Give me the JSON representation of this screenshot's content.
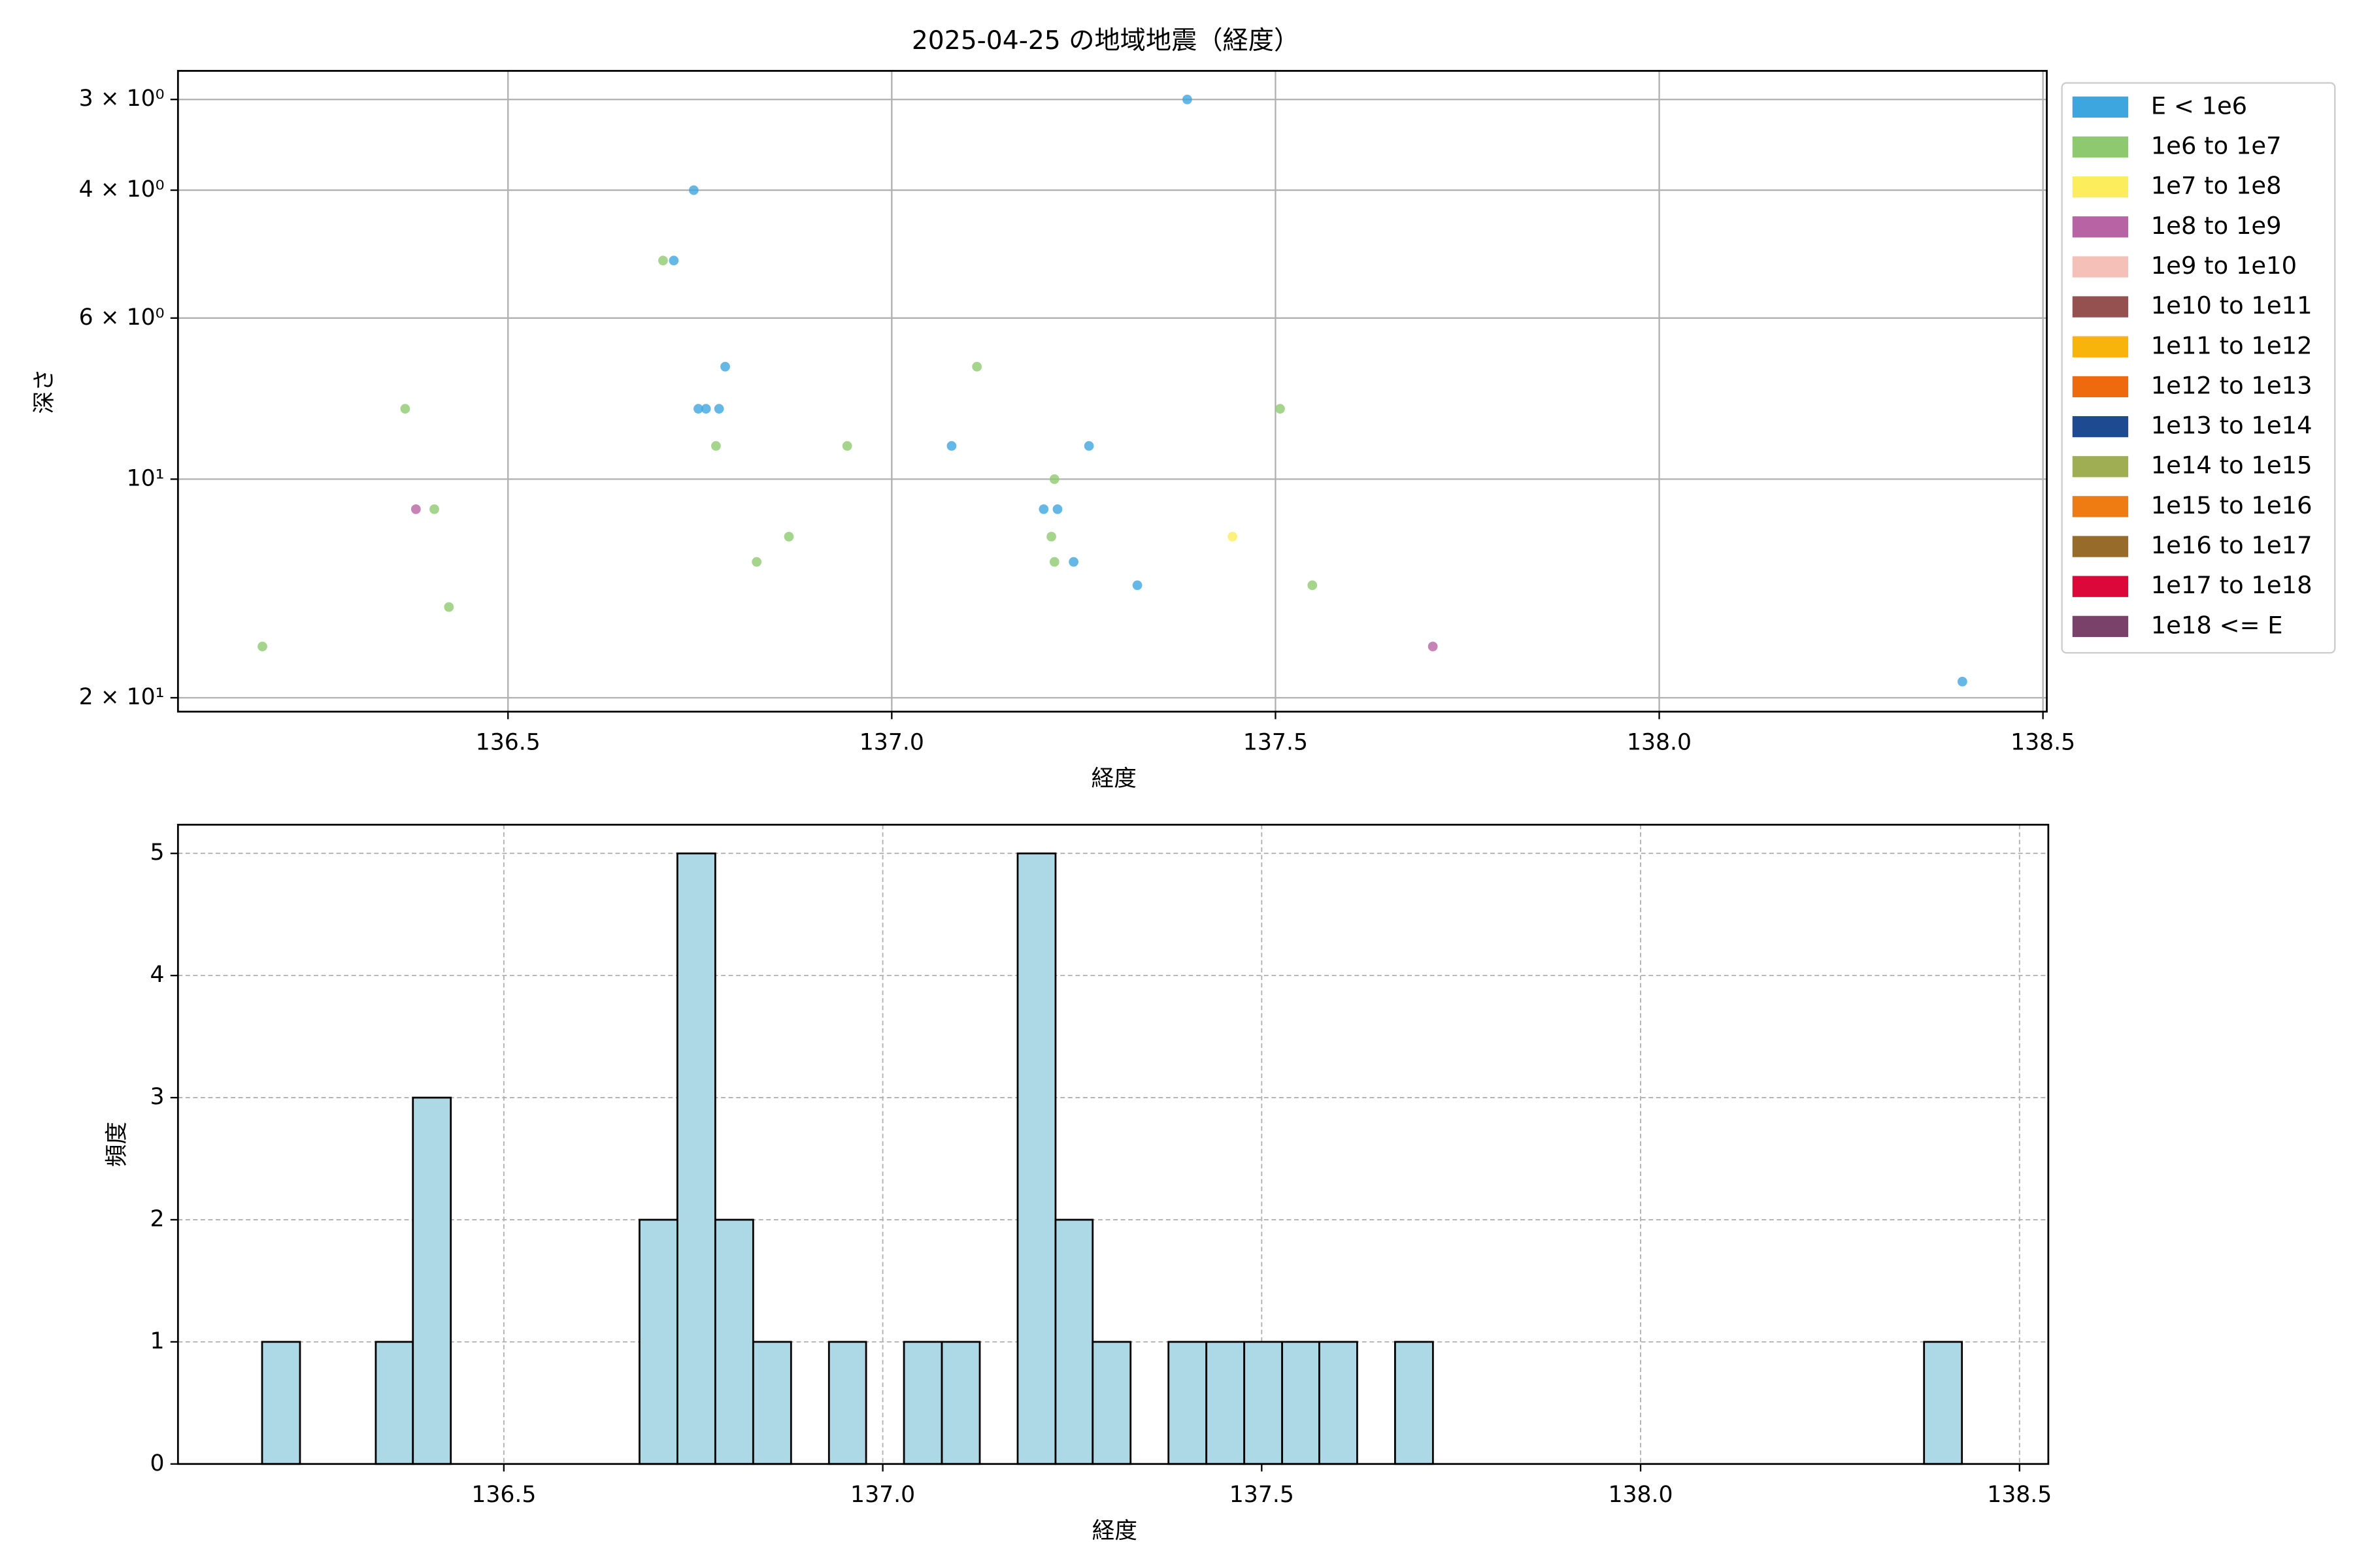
{
  "chart_data": [
    {
      "type": "scatter",
      "title": "2025-04-25 の地域地震（経度）",
      "xlabel": "経度",
      "ylabel": "深さ",
      "yscale": "log",
      "grid": true,
      "grid_style": "solid",
      "legend": "outside right",
      "xlim": [
        136.07,
        138.505
      ],
      "ylim": [
        20.9,
        2.74
      ],
      "xticks": [
        136.5,
        {
          "value": 137,
          "label": "137.0"
        },
        137.5,
        {
          "value": 138,
          "label": "138.0"
        },
        138.5
      ],
      "yticks": [
        {
          "value": 3,
          "label": "3 × 10⁰"
        },
        {
          "value": 4,
          "label": "4 × 10⁰"
        },
        {
          "value": 6,
          "label": "6 × 10⁰"
        },
        {
          "value": 10,
          "label": "10¹"
        },
        {
          "value": 20,
          "label": "2 × 10¹"
        }
      ],
      "series": [
        {
          "name": "E < 1e6",
          "color": "#3ea6de",
          "x": [
            137.385,
            136.742,
            136.716,
            136.783,
            136.748,
            136.758,
            136.775,
            137.078,
            137.257,
            137.198,
            137.216,
            137.237,
            137.32,
            138.395
          ],
          "values": [
            3.0,
            4.0,
            5.0,
            7.0,
            8.0,
            8.0,
            8.0,
            9.0,
            9.0,
            11.0,
            11.0,
            13.0,
            14.0,
            19.0
          ]
        },
        {
          "name": "1e6 to 1e7",
          "color": "#8fc96f",
          "x": [
            136.702,
            137.111,
            136.366,
            137.506,
            136.771,
            136.942,
            137.212,
            136.404,
            136.866,
            137.208,
            136.824,
            137.212,
            137.548,
            136.423,
            136.18
          ],
          "values": [
            5.0,
            7.0,
            8.0,
            8.0,
            9.0,
            9.0,
            10.0,
            11.0,
            12.0,
            12.0,
            13.0,
            13.0,
            14.0,
            15.0,
            17.0
          ]
        },
        {
          "name": "1e7 to 1e8",
          "color": "#fced5c",
          "x": [
            137.444
          ],
          "values": [
            12.0
          ]
        },
        {
          "name": "1e8 to 1e9",
          "color": "#b864a4",
          "x": [
            136.38,
            137.705
          ],
          "values": [
            11.0,
            17.0
          ]
        },
        {
          "name": "1e9 to 1e10",
          "color": "#f5c0b8",
          "x": [],
          "values": []
        },
        {
          "name": "1e10 to 1e11",
          "color": "#955150",
          "x": [],
          "values": []
        },
        {
          "name": "1e11 to 1e12",
          "color": "#f9b40c",
          "x": [],
          "values": []
        },
        {
          "name": "1e12 to 1e13",
          "color": "#ee6a0d",
          "x": [],
          "values": []
        },
        {
          "name": "1e13 to 1e14",
          "color": "#1d4a91",
          "x": [],
          "values": []
        },
        {
          "name": "1e14 to 1e15",
          "color": "#a0ae53",
          "x": [],
          "values": []
        },
        {
          "name": "1e15 to 1e16",
          "color": "#ef7c13",
          "x": [],
          "values": []
        },
        {
          "name": "1e16 to 1e17",
          "color": "#976b2a",
          "x": [],
          "values": []
        },
        {
          "name": "1e17 to 1e18",
          "color": "#dc0839",
          "x": [],
          "values": []
        },
        {
          "name": "1e18 <= E",
          "color": "#7a426b",
          "x": [],
          "values": []
        }
      ]
    },
    {
      "type": "histogram",
      "xlabel": "経度",
      "ylabel": "頻度",
      "color": "#add8e6",
      "edgecolor": "#000000",
      "grid": true,
      "grid_style": "dashed",
      "xlim": [
        136.07,
        138.538
      ],
      "ylim": [
        0,
        5.235
      ],
      "xticks": [
        136.5,
        {
          "value": 137,
          "label": "137.0"
        },
        137.5,
        {
          "value": 138,
          "label": "138.0"
        },
        138.5
      ],
      "yticks": [
        0,
        1,
        2,
        3,
        4,
        5
      ],
      "bins": [
        136.181,
        136.231,
        136.281,
        136.331,
        136.38,
        136.43,
        136.48,
        136.53,
        136.58,
        136.63,
        136.679,
        136.729,
        136.779,
        136.829,
        136.879,
        136.929,
        136.978,
        137.028,
        137.078,
        137.128,
        137.178,
        137.228,
        137.277,
        137.327,
        137.377,
        137.427,
        137.477,
        137.527,
        137.576,
        137.626,
        137.676,
        137.726,
        137.776,
        137.826,
        137.876,
        137.925,
        137.975,
        138.025,
        138.075,
        138.125,
        138.174,
        138.224,
        138.274,
        138.324,
        138.374,
        138.424
      ],
      "values": [
        1,
        0,
        0,
        1,
        3,
        0,
        0,
        0,
        0,
        0,
        2,
        5,
        2,
        1,
        0,
        1,
        0,
        1,
        1,
        0,
        5,
        2,
        1,
        0,
        1,
        1,
        1,
        1,
        1,
        0,
        1,
        0,
        0,
        0,
        0,
        0,
        0,
        0,
        0,
        0,
        0,
        0,
        0,
        0,
        1
      ]
    }
  ]
}
